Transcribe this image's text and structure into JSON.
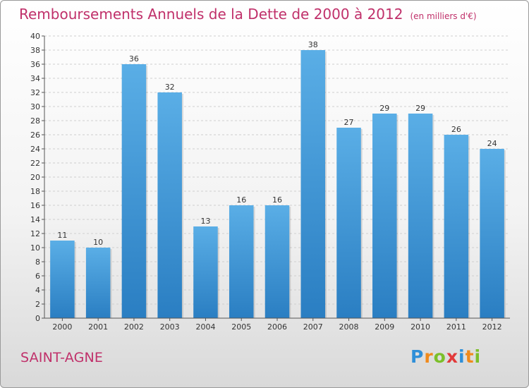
{
  "commune": "SAINT-AGNE",
  "logo": {
    "letters": [
      "P",
      "r",
      "o",
      "x",
      "i",
      "t",
      "i"
    ]
  },
  "chart_data": {
    "type": "bar",
    "title": "Remboursements Annuels de la Dette de 2000 à 2012",
    "unit_note": "(en milliers d'€)",
    "categories": [
      "2000",
      "2001",
      "2002",
      "2003",
      "2004",
      "2005",
      "2006",
      "2007",
      "2008",
      "2009",
      "2010",
      "2011",
      "2012"
    ],
    "values": [
      11,
      10,
      36,
      32,
      13,
      16,
      16,
      38,
      27,
      29,
      29,
      26,
      24
    ],
    "ylim": [
      0,
      40
    ],
    "yticks": [
      0,
      2,
      4,
      6,
      8,
      10,
      12,
      14,
      16,
      18,
      20,
      22,
      24,
      26,
      28,
      30,
      32,
      34,
      36,
      38,
      40
    ],
    "xlabel": "",
    "ylabel": "",
    "grid": true,
    "bar_color": "#3d93d8"
  }
}
